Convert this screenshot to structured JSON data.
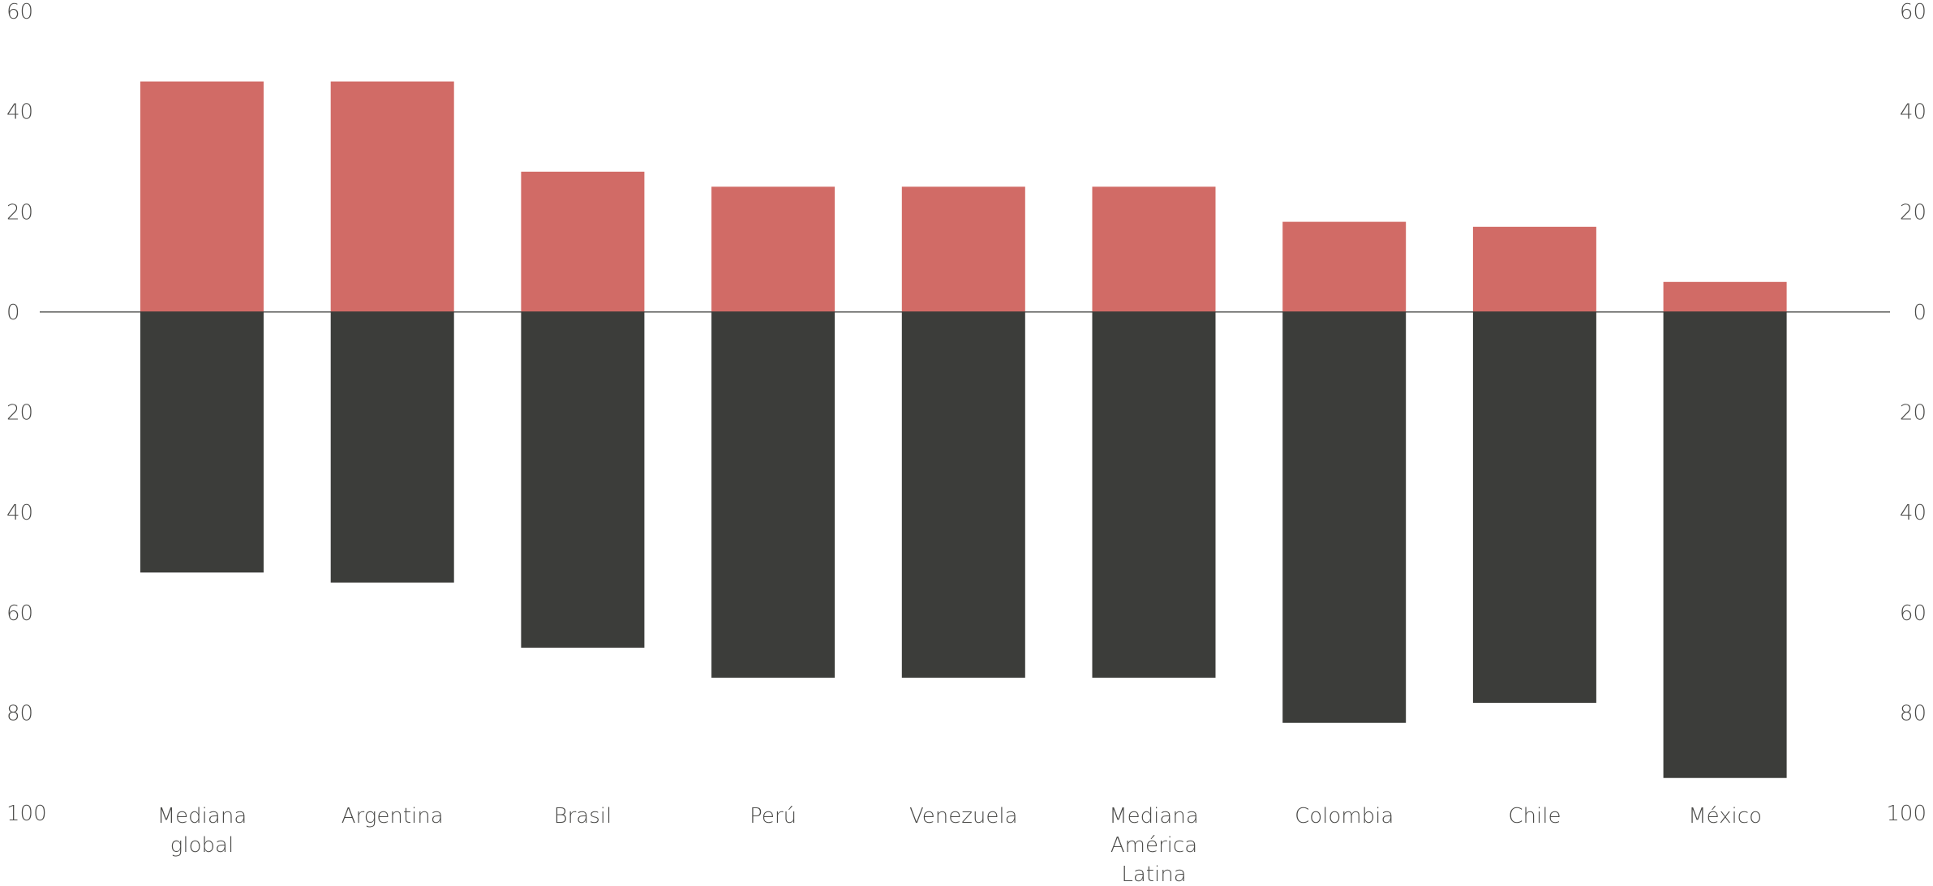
{
  "chart_data": {
    "type": "bar",
    "categories": [
      "Mediana global",
      "Argentina",
      "Brasil",
      "Perú",
      "Venezuela",
      "Mediana América Latina",
      "Colombia",
      "Chile",
      "México"
    ],
    "series": [
      {
        "color": "#d16b66",
        "values": [
          46,
          46,
          28,
          25,
          25,
          25,
          18,
          17,
          6
        ]
      },
      {
        "color": "#3c3d3a",
        "values": [
          -52,
          -54,
          -67,
          -73,
          -73,
          -73,
          -82,
          -78,
          -93
        ]
      }
    ],
    "ylim": [
      -100,
      60
    ],
    "yticks": [
      {
        "value": -100,
        "label": "100"
      },
      {
        "value": -80,
        "label": "80"
      },
      {
        "value": -60,
        "label": "60"
      },
      {
        "value": -40,
        "label": "40"
      },
      {
        "value": -20,
        "label": "20"
      },
      0,
      20,
      40,
      60
    ],
    "grid": false
  }
}
